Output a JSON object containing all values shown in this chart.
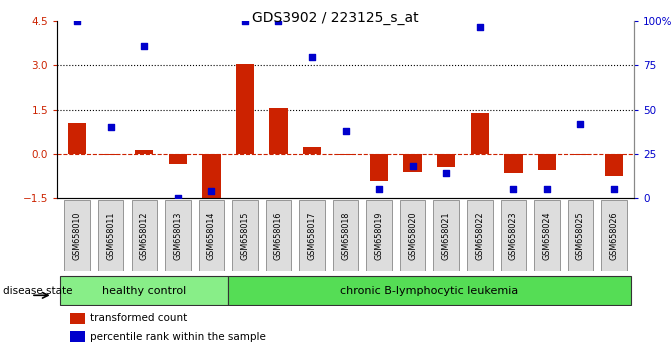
{
  "title": "GDS3902 / 223125_s_at",
  "samples": [
    "GSM658010",
    "GSM658011",
    "GSM658012",
    "GSM658013",
    "GSM658014",
    "GSM658015",
    "GSM658016",
    "GSM658017",
    "GSM658018",
    "GSM658019",
    "GSM658020",
    "GSM658021",
    "GSM658022",
    "GSM658023",
    "GSM658024",
    "GSM658025",
    "GSM658026"
  ],
  "transformed_count": [
    1.05,
    -0.05,
    0.15,
    -0.35,
    -1.55,
    3.05,
    1.55,
    0.25,
    -0.05,
    -0.9,
    -0.6,
    -0.45,
    1.4,
    -0.65,
    -0.55,
    -0.05,
    -0.75
  ],
  "percentile_rank": [
    100,
    40,
    86,
    0,
    4,
    100,
    100,
    80,
    38,
    5,
    18,
    14,
    97,
    5,
    5,
    42,
    5
  ],
  "ylim_left": [
    -1.5,
    4.5
  ],
  "ylim_right": [
    0,
    100
  ],
  "yticks_left": [
    -1.5,
    0,
    1.5,
    3,
    4.5
  ],
  "yticks_right": [
    0,
    25,
    50,
    75,
    100
  ],
  "ytick_labels_right": [
    "0",
    "25",
    "50",
    "75",
    "100%"
  ],
  "bar_color": "#CC2200",
  "dot_color": "#0000CC",
  "groups": [
    {
      "label": "healthy control",
      "start": 0,
      "end": 4,
      "color": "#88EE88"
    },
    {
      "label": "chronic B-lymphocytic leukemia",
      "start": 5,
      "end": 16,
      "color": "#55DD55"
    }
  ],
  "legend_items": [
    {
      "label": "transformed count",
      "color": "#CC2200"
    },
    {
      "label": "percentile rank within the sample",
      "color": "#0000CC"
    }
  ],
  "disease_state_label": "disease state",
  "bar_width": 0.55,
  "background_color": "#ffffff",
  "label_box_color": "#dddddd",
  "label_box_edge": "#888888"
}
